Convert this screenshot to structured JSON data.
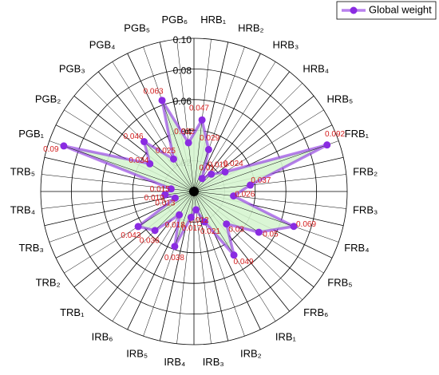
{
  "chart_data": {
    "type": "radar",
    "categories": [
      "HRB₁",
      "HRB₂",
      "HRB₃",
      "HRB₄",
      "HRB₅",
      "FRB₁",
      "FRB₂",
      "FRB₃",
      "FRB₄",
      "FRB₅",
      "FRB₆",
      "IRB₁",
      "IRB₂",
      "IRB₃",
      "IRB₄",
      "IRB₅",
      "IRB₆",
      "TRB₁",
      "TRB₂",
      "TRB₃",
      "TRB₄",
      "TRB₅",
      "PGB₁",
      "PGB₂",
      "PGB₃",
      "PGB₄",
      "PGB₅",
      "PGB₆"
    ],
    "series": [
      {
        "name": "Global weight",
        "color": "#8a2be2",
        "fill": "#d6f5d0",
        "values": [
          0.047,
          0.029,
          0.01,
          0.016,
          0.024,
          0.092,
          0.037,
          0.026,
          0.069,
          0.05,
          0.03,
          0.049,
          0.021,
          0.012,
          0.017,
          0.038,
          0.018,
          0.036,
          0.043,
          0.013,
          0.019,
          0.015,
          0.09,
          0.034,
          0.046,
          0.025,
          0.063,
          0.032
        ]
      }
    ],
    "rlim": [
      0,
      0.1
    ],
    "rticks": [
      0.02,
      0.04,
      0.06,
      0.08,
      {
        "value": 0.1,
        "label": "0.10"
      }
    ],
    "grid": true,
    "legend": "top-right"
  }
}
